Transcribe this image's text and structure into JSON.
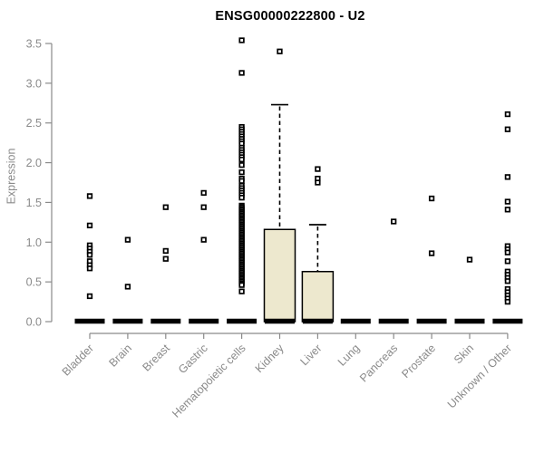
{
  "title": "ENSG00000222800 - U2",
  "chart_data": {
    "type": "boxplot",
    "title": "ENSG00000222800 - U2",
    "xlabel": "",
    "ylabel": "Expression",
    "ylim": [
      0,
      3.5
    ],
    "yticks": [
      0.0,
      0.5,
      1.0,
      1.5,
      2.0,
      2.5,
      3.0,
      3.5
    ],
    "grid": false,
    "legend_position": "none",
    "categories": [
      "Bladder",
      "Brain",
      "Breast",
      "Gastric",
      "Hematopoietic cells",
      "Kidney",
      "Liver",
      "Lung",
      "Pancreas",
      "Prostate",
      "Skin",
      "Unknown / Other"
    ],
    "series": [
      {
        "label": "Bladder",
        "q1": 0,
        "median": 0,
        "q3": 0,
        "whisker_low": 0,
        "whisker_high": 0,
        "outliers": [
          1.58,
          1.21,
          0.96,
          0.92,
          0.88,
          0.84,
          0.76,
          0.71,
          0.67,
          0.32
        ]
      },
      {
        "label": "Brain",
        "q1": 0,
        "median": 0,
        "q3": 0,
        "whisker_low": 0,
        "whisker_high": 0,
        "outliers": [
          1.03,
          0.44
        ]
      },
      {
        "label": "Breast",
        "q1": 0,
        "median": 0,
        "q3": 0,
        "whisker_low": 0,
        "whisker_high": 0,
        "outliers": [
          1.44,
          0.89,
          0.79
        ]
      },
      {
        "label": "Gastric",
        "q1": 0,
        "median": 0,
        "q3": 0,
        "whisker_low": 0,
        "whisker_high": 0,
        "outliers": [
          1.62,
          1.44,
          1.03
        ]
      },
      {
        "label": "Hematopoietic cells",
        "q1": 0,
        "median": 0,
        "q3": 0,
        "whisker_low": 0,
        "whisker_high": 0,
        "outliers": [
          3.54,
          3.13,
          2.45,
          2.42,
          2.39,
          2.36,
          2.33,
          2.3,
          2.27,
          2.24,
          2.19,
          2.16,
          2.13,
          2.1,
          2.07,
          2.04,
          1.97,
          1.88,
          1.8,
          1.77,
          1.71,
          1.68,
          1.65,
          1.62,
          1.59,
          1.56,
          1.46,
          1.44,
          1.42,
          1.4,
          1.38,
          1.36,
          1.34,
          1.32,
          1.3,
          1.28,
          1.26,
          1.24,
          1.22,
          1.2,
          1.18,
          1.16,
          1.14,
          1.12,
          1.1,
          1.08,
          1.06,
          1.04,
          1.02,
          1.0,
          0.98,
          0.96,
          0.94,
          0.92,
          0.9,
          0.88,
          0.86,
          0.84,
          0.82,
          0.8,
          0.78,
          0.76,
          0.74,
          0.72,
          0.7,
          0.68,
          0.66,
          0.64,
          0.62,
          0.6,
          0.58,
          0.56,
          0.54,
          0.52,
          0.5,
          0.48,
          0.46,
          0.38
        ]
      },
      {
        "label": "Kidney",
        "q1": 0,
        "median": 0,
        "q3": 1.16,
        "whisker_low": 0,
        "whisker_high": 2.73,
        "outliers": [
          3.4
        ]
      },
      {
        "label": "Liver",
        "q1": 0,
        "median": 0,
        "q3": 0.63,
        "whisker_low": 0,
        "whisker_high": 1.22,
        "outliers": [
          1.92,
          1.8,
          1.75
        ]
      },
      {
        "label": "Lung",
        "q1": 0,
        "median": 0,
        "q3": 0,
        "whisker_low": 0,
        "whisker_high": 0,
        "outliers": []
      },
      {
        "label": "Pancreas",
        "q1": 0,
        "median": 0,
        "q3": 0,
        "whisker_low": 0,
        "whisker_high": 0,
        "outliers": [
          1.26
        ]
      },
      {
        "label": "Prostate",
        "q1": 0,
        "median": 0,
        "q3": 0,
        "whisker_low": 0,
        "whisker_high": 0,
        "outliers": [
          1.55,
          0.86
        ]
      },
      {
        "label": "Skin",
        "q1": 0,
        "median": 0,
        "q3": 0,
        "whisker_low": 0,
        "whisker_high": 0,
        "outliers": [
          0.78
        ]
      },
      {
        "label": "Unknown / Other",
        "q1": 0,
        "median": 0,
        "q3": 0,
        "whisker_low": 0,
        "whisker_high": 0,
        "outliers": [
          2.61,
          2.42,
          1.82,
          1.51,
          1.41,
          0.95,
          0.91,
          0.87,
          0.76,
          0.63,
          0.59,
          0.55,
          0.51,
          0.41,
          0.37,
          0.33,
          0.29,
          0.25
        ]
      }
    ],
    "colors": {
      "box_fill": "#ede8ce",
      "box_border": "#000000",
      "marker": "#000000",
      "axis": "#8a8a8a",
      "title": "#000000"
    }
  }
}
